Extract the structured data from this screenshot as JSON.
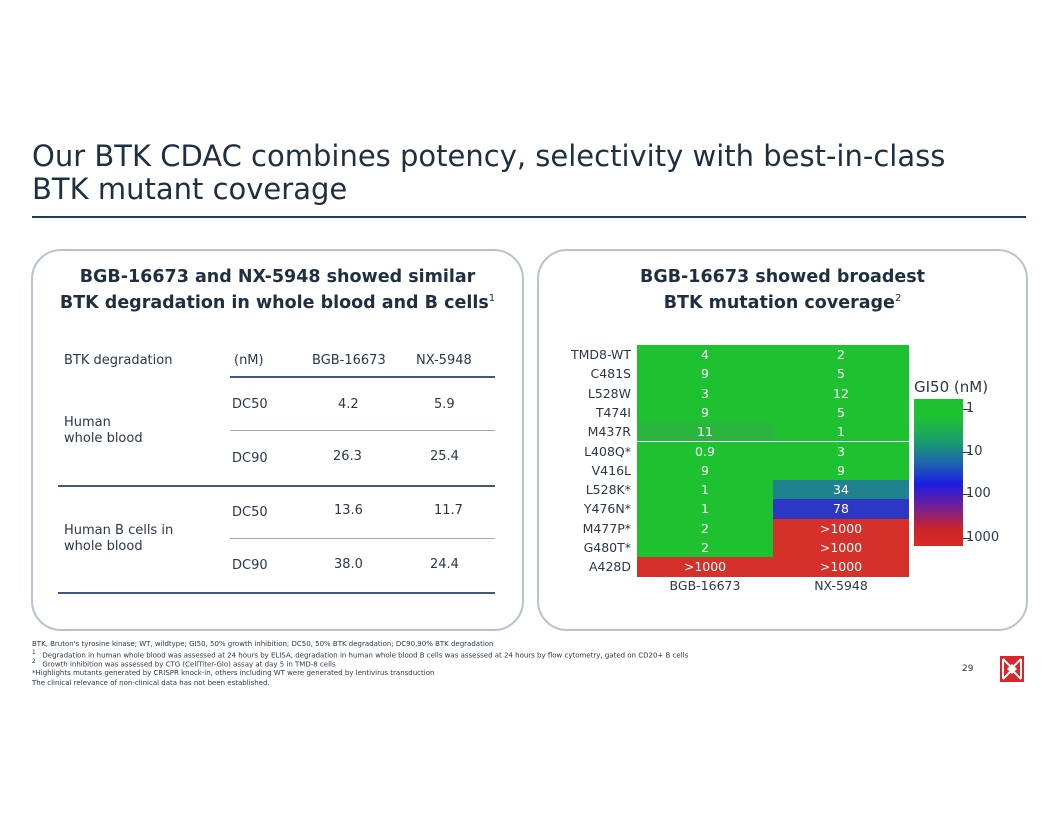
{
  "title": {
    "line1": "Our BTK CDAC combines potency, selectivity with best-in-class",
    "line2": "BTK mutant coverage"
  },
  "left_panel": {
    "heading_line1": "BGB-16673 and NX-5948 showed similar",
    "heading_line2": "BTK degradation in whole blood and B cells",
    "heading_sup": "1",
    "table": {
      "headers": [
        "BTK degradation",
        "(nM)",
        "BGB-16673",
        "NX-5948"
      ],
      "groups": [
        {
          "label_line1": "Human",
          "label_line2": "whole blood",
          "rows": [
            {
              "metric": "DC50",
              "bgb": "4.2",
              "nx": "5.9"
            },
            {
              "metric": "DC90",
              "bgb": "26.3",
              "nx": "25.4"
            }
          ]
        },
        {
          "label_line1": "Human B cells in",
          "label_line2": "whole blood",
          "rows": [
            {
              "metric": "DC50",
              "bgb": "13.6",
              "nx": "11.7"
            },
            {
              "metric": "DC90",
              "bgb": "38.0",
              "nx": "24.4"
            }
          ]
        }
      ]
    }
  },
  "right_panel": {
    "heading_line1": "BGB-16673 showed broadest",
    "heading_line2": "BTK mutation coverage",
    "heading_sup": "2",
    "heatmap": {
      "rows": [
        "TMD8-WT",
        "C481S",
        "L528W",
        "T474I",
        "M437R",
        "L408Q*",
        "V416L",
        "L528K*",
        "Y476N*",
        "M477P*",
        "G480T*",
        "A428D"
      ],
      "columns": [
        "BGB-16673",
        "NX-5948"
      ],
      "values": [
        [
          "4",
          "2"
        ],
        [
          "9",
          "5"
        ],
        [
          "3",
          "12"
        ],
        [
          "9",
          "5"
        ],
        [
          "11",
          "1"
        ],
        [
          "0.9",
          "3"
        ],
        [
          "9",
          "9"
        ],
        [
          "1",
          "34"
        ],
        [
          "1",
          "78"
        ],
        [
          "2",
          ">1000"
        ],
        [
          "2",
          ">1000"
        ],
        [
          ">1000",
          ">1000"
        ]
      ],
      "colors": [
        [
          "#1ec231",
          "#1ec231"
        ],
        [
          "#1ec231",
          "#1ec231"
        ],
        [
          "#1ec231",
          "#1ec231"
        ],
        [
          "#1ec231",
          "#1ec231"
        ],
        [
          "#2cb53e",
          "#1ec231"
        ],
        [
          "#1ec231",
          "#1ec231"
        ],
        [
          "#1ec231",
          "#1ec231"
        ],
        [
          "#1ec231",
          "#20828f"
        ],
        [
          "#1ec231",
          "#2e37c4"
        ],
        [
          "#1ec231",
          "#d6302a"
        ],
        [
          "#1ec231",
          "#d6302a"
        ],
        [
          "#d6302a",
          "#d6302a"
        ]
      ],
      "colorbar": {
        "title": "GI50 (nM)",
        "ticks": [
          "1",
          "10",
          "100",
          "1000"
        ]
      }
    }
  },
  "footnotes": [
    "BTK, Bruton's tyrosine kinase; WT, wildtype; GI50, 50% growth inhibition; DC50, 50% BTK degradation; DC90,90% BTK degradation",
    "Degradation in human whole blood was assessed at 24 hours by ELISA, degradation in human whole blood B cells was assessed at 24 hours by flow cytometry, gated on CD20+ B cells",
    "Growth inhibition was assessed by CTG (CellTiter-Glo) assay at day 5 in TMD-8 cells",
    "*Highlights mutants generated by CRISPR knock-in, others including WT were generated by lentivirus transduction",
    "The clinical relevance of non-clinical data has not been established."
  ],
  "footnote_markers": [
    "1",
    "2"
  ],
  "page_number": "29",
  "logo_icon": "beigene-logo-icon"
}
